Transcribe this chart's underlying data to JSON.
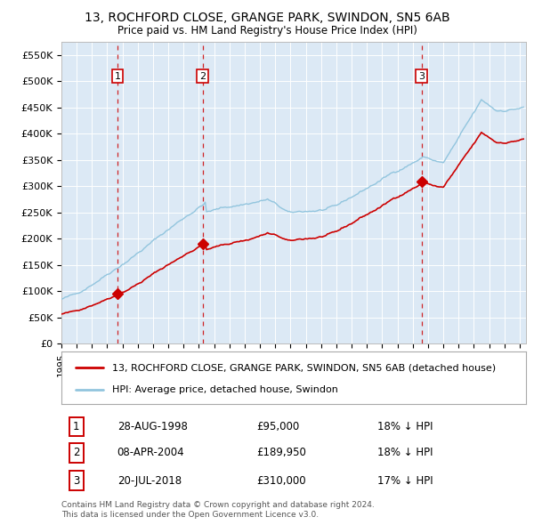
{
  "title": "13, ROCHFORD CLOSE, GRANGE PARK, SWINDON, SN5 6AB",
  "subtitle": "Price paid vs. HM Land Registry's House Price Index (HPI)",
  "background_color": "#ffffff",
  "plot_bg_color": "#dce9f5",
  "grid_color": "#ffffff",
  "purchases": [
    {
      "date": "1998-08-28",
      "price": 95000,
      "label": "1"
    },
    {
      "date": "2004-04-08",
      "price": 189950,
      "label": "2"
    },
    {
      "date": "2018-07-20",
      "price": 310000,
      "label": "3"
    }
  ],
  "legend_entries": [
    "13, ROCHFORD CLOSE, GRANGE PARK, SWINDON, SN5 6AB (detached house)",
    "HPI: Average price, detached house, Swindon"
  ],
  "footer": "Contains HM Land Registry data © Crown copyright and database right 2024.\nThis data is licensed under the Open Government Licence v3.0.",
  "ylim": [
    0,
    575000
  ],
  "yticks": [
    0,
    50000,
    100000,
    150000,
    200000,
    250000,
    300000,
    350000,
    400000,
    450000,
    500000,
    550000
  ],
  "ytick_labels": [
    "£0",
    "£50K",
    "£100K",
    "£150K",
    "£200K",
    "£250K",
    "£300K",
    "£350K",
    "£400K",
    "£450K",
    "£500K",
    "£550K"
  ],
  "title_fontsize": 10,
  "subtitle_fontsize": 8.5,
  "tick_fontsize": 8,
  "legend_fontsize": 8,
  "table_fontsize": 8.5
}
